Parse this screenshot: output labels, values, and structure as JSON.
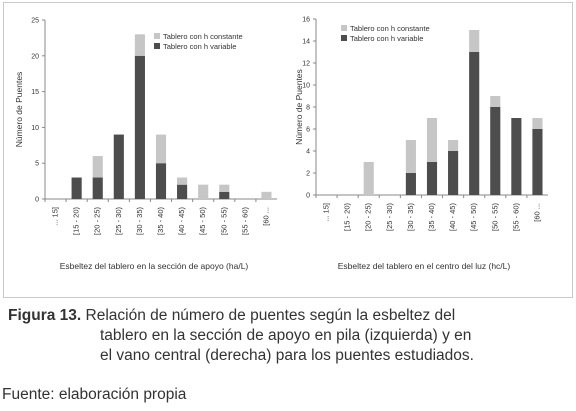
{
  "chart_data": [
    {
      "type": "bar",
      "stacked": true,
      "categories": [
        "... 15]",
        "[15 - 20)",
        "[20 - 25)",
        "[25 - 30)",
        "[30 - 35)",
        "[35 - 40)",
        "[40 - 45)",
        "[45 - 50)",
        "[50 - 55)",
        "[55 - 60)",
        "[60 ..."
      ],
      "series": [
        {
          "name": "Tablero con h variable",
          "color": "#4d4d4d",
          "values": [
            0,
            3,
            3,
            9,
            20,
            5,
            2,
            0,
            1,
            0,
            0
          ]
        },
        {
          "name": "Tablero con h constante",
          "color": "#c6c6c6",
          "values": [
            0,
            0,
            3,
            0,
            3,
            4,
            1,
            2,
            1,
            0,
            1
          ]
        }
      ],
      "xlabel": "Esbeltez del tablero en la sección de apoyo (ha/L)",
      "ylabel": "Número de Puentes",
      "ylim": [
        0,
        25
      ],
      "yticks": [
        0,
        5,
        10,
        15,
        20,
        25
      ],
      "legend": "top-right",
      "grid": false
    },
    {
      "type": "bar",
      "stacked": true,
      "categories": [
        "... 15]",
        "[15 - 20)",
        "[20 - 25)",
        "[25 - 30)",
        "[30 - 35)",
        "[35 - 40)",
        "[40 - 45)",
        "[45 - 50)",
        "[50 - 55)",
        "[55 - 60)",
        "[60 ..."
      ],
      "series": [
        {
          "name": "Tablero con h variable",
          "color": "#4d4d4d",
          "values": [
            0,
            0,
            0,
            0,
            2,
            3,
            4,
            13,
            8,
            7,
            6
          ]
        },
        {
          "name": "Tablero con h constante",
          "color": "#c6c6c6",
          "values": [
            0,
            0,
            3,
            0,
            3,
            4,
            1,
            2,
            1,
            0,
            1
          ]
        }
      ],
      "xlabel": "Esbeltez del tablero en el centro del luz (hc/L)",
      "ylabel": "Número de Puentes",
      "ylim": [
        0,
        16
      ],
      "yticks": [
        0,
        2,
        4,
        6,
        8,
        10,
        12,
        14,
        16
      ],
      "legend": "top-left",
      "grid": false
    }
  ],
  "caption": {
    "label": "Figura 13.",
    "line1": " Relación de número de puentes según la esbeltez del",
    "line2": "tablero en la sección de apoyo en pila (izquierda) y en",
    "line3": "el vano central (derecha) para los puentes estudiados."
  },
  "source": "Fuente: elaboración propia"
}
